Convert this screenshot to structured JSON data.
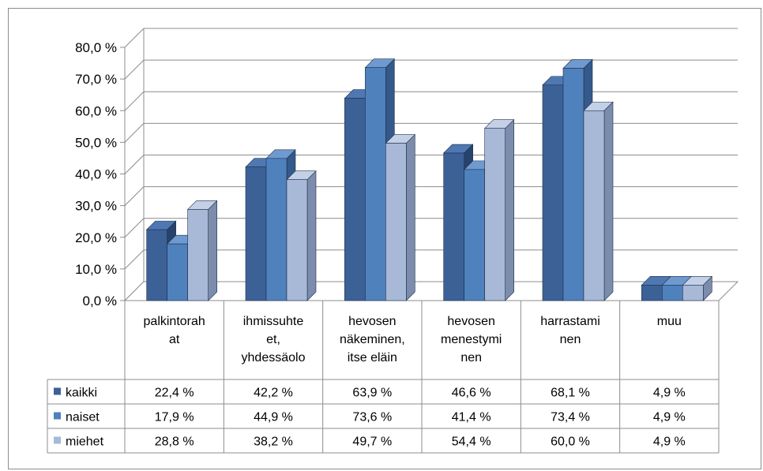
{
  "chart_data": {
    "type": "bar",
    "categories": [
      [
        "palkintorah",
        "at"
      ],
      [
        "ihmissuhte",
        "et,",
        "yhdessäolo"
      ],
      [
        "hevosen",
        "näkeminen,",
        "itse eläin"
      ],
      [
        "hevosen",
        "menestymi",
        "nen"
      ],
      [
        "harrastami",
        "nen"
      ],
      [
        "muu"
      ]
    ],
    "series": [
      {
        "name": "kaikki",
        "values": [
          22.4,
          42.2,
          63.9,
          46.6,
          68.1,
          4.9
        ],
        "labels": [
          "22,4 %",
          "42,2 %",
          "63,9 %",
          "46,6 %",
          "68,1 %",
          "4,9 %"
        ]
      },
      {
        "name": "naiset",
        "values": [
          17.9,
          44.9,
          73.6,
          41.4,
          73.4,
          4.9
        ],
        "labels": [
          "17,9 %",
          "44,9 %",
          "73,6 %",
          "41,4 %",
          "73,4 %",
          "4,9 %"
        ]
      },
      {
        "name": "miehet",
        "values": [
          28.8,
          38.2,
          49.7,
          54.4,
          60.0,
          4.9
        ],
        "labels": [
          "28,8 %",
          "38,2 %",
          "49,7 %",
          "54,4 %",
          "60,0 %",
          "4,9 %"
        ]
      }
    ],
    "yticks": [
      "0,0 %",
      "10,0 %",
      "20,0 %",
      "30,0 %",
      "40,0 %",
      "50,0 %",
      "60,0 %",
      "70,0 %",
      "80,0 %"
    ],
    "ylim": [
      0,
      80
    ],
    "grid": true,
    "legend": "data-table",
    "colors": {
      "kaikki": {
        "front": "#3c6197",
        "side": "#27436c",
        "top": "#4f78b3"
      },
      "naiset": {
        "front": "#4f81bd",
        "side": "#34598a",
        "top": "#6f9ad0"
      },
      "miehet": {
        "front": "#a8b9d8",
        "side": "#7b8cac",
        "top": "#c3d0e6"
      }
    }
  }
}
